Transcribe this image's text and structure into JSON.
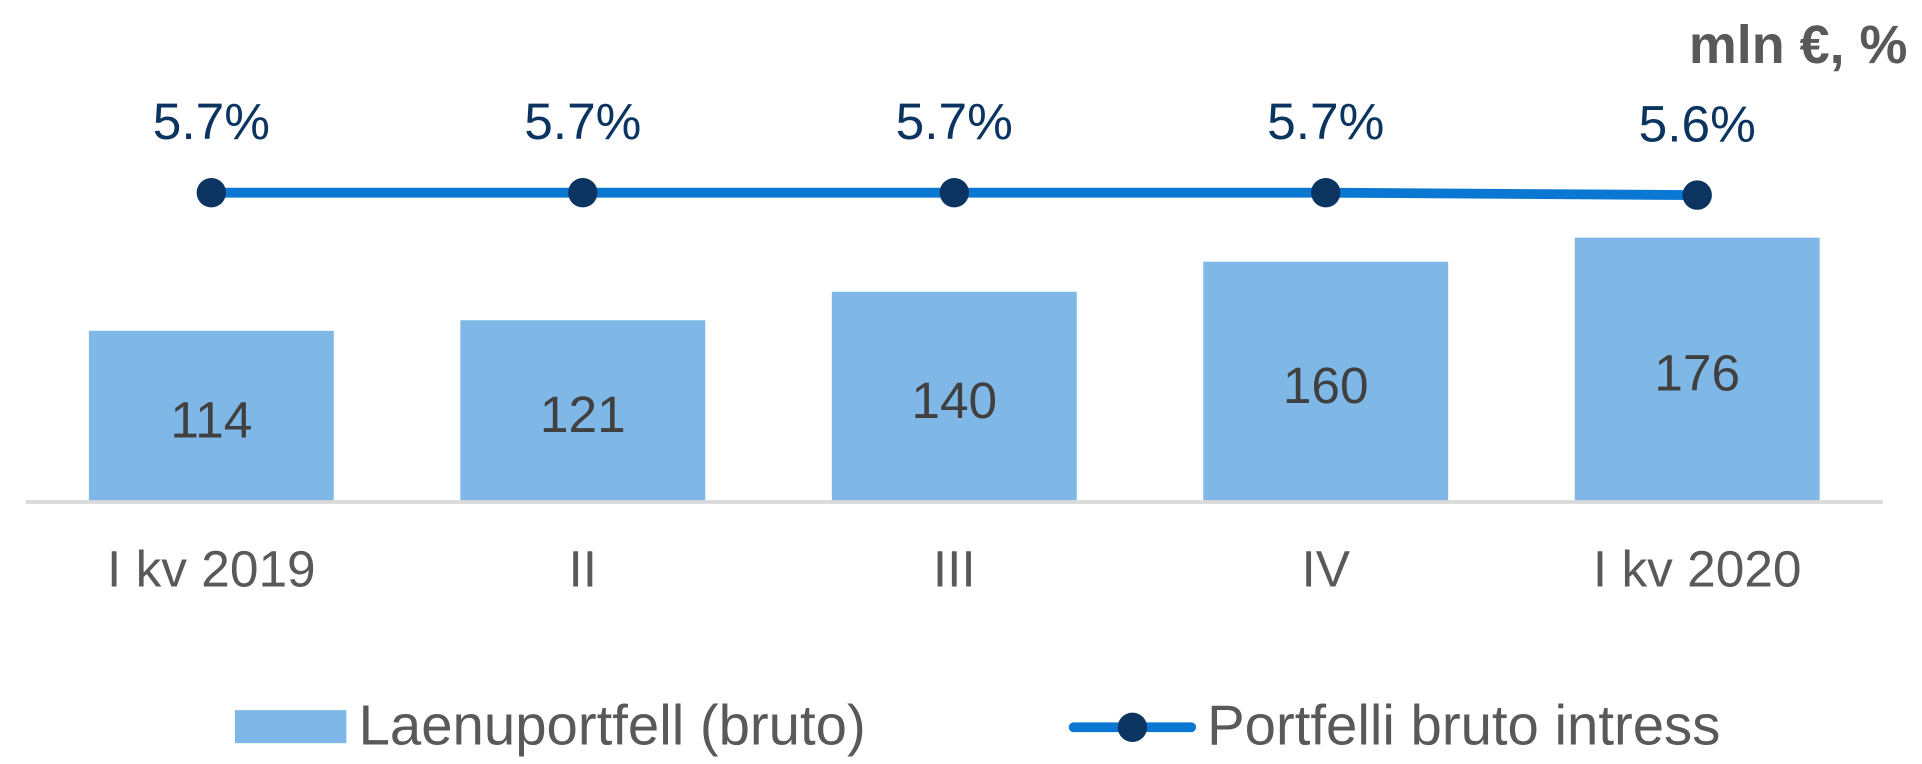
{
  "chart_data": {
    "type": "bar_line",
    "unit_label": "mln €, %",
    "categories": [
      "I kv 2019",
      "II",
      "III",
      "IV",
      "I kv 2020"
    ],
    "ylim": [
      0,
      300
    ],
    "y2lim": [
      -7,
      11.5
    ],
    "series": [
      {
        "name": "Laenuportfell (bruto)",
        "type": "bar",
        "color": "#7fb8e6",
        "values": [
          114,
          121,
          140,
          160,
          176
        ]
      },
      {
        "name": "Portfelli bruto intress",
        "type": "line",
        "axis": "y2",
        "color": "#0a78d2",
        "marker_color": "#0b3461",
        "values": [
          5.7,
          5.7,
          5.7,
          5.7,
          5.6
        ],
        "value_labels": [
          "5.7%",
          "5.7%",
          "5.7%",
          "5.7%",
          "5.6%"
        ]
      }
    ]
  }
}
